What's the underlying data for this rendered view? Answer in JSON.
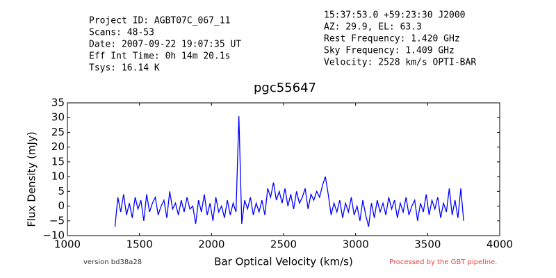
{
  "chart_data": {
    "type": "line",
    "title": "pgc55647",
    "xlabel": "Bar Optical Velocity (km/s)",
    "ylabel": "Flux Density (mJy)",
    "header_left": [
      "Project ID: AGBT07C_067_11",
      "Scans: 48-53",
      "Date: 2007-09-22 19:07:35 UT",
      "Eff Int Time: 0h 14m 20.1s",
      "Tsys: 16.14 K"
    ],
    "header_right": [
      "15:37:53.0 +59:23:30 J2000",
      "AZ: 29.9, EL: 63.3",
      "Rest Frequency:   1.420 GHz",
      "Sky Frequency:    1.409 GHz",
      "Velocity: 2528 km/s OPTI-BAR"
    ],
    "footer_left": "version bd38a28",
    "footer_right": "Processed by the GBT pipeline.",
    "color": "#0000ff",
    "xlim": [
      1000,
      4000
    ],
    "ylim": [
      -10,
      35
    ],
    "xticks": [
      1000,
      1500,
      2000,
      2500,
      3000,
      3500,
      4000
    ],
    "yticks": [
      {
        "value": -10,
        "label": "−10"
      },
      {
        "value": -5,
        "label": "−5"
      },
      0,
      5,
      10,
      15,
      20,
      25,
      30,
      35
    ],
    "x": [
      1330,
      1350,
      1370,
      1390,
      1410,
      1430,
      1450,
      1470,
      1490,
      1510,
      1530,
      1550,
      1570,
      1590,
      1610,
      1630,
      1650,
      1670,
      1690,
      1710,
      1730,
      1750,
      1770,
      1790,
      1810,
      1830,
      1850,
      1870,
      1890,
      1910,
      1930,
      1950,
      1970,
      1990,
      2010,
      2030,
      2050,
      2070,
      2090,
      2110,
      2130,
      2150,
      2170,
      2190,
      2210,
      2230,
      2250,
      2270,
      2290,
      2310,
      2330,
      2350,
      2370,
      2390,
      2410,
      2430,
      2450,
      2470,
      2490,
      2510,
      2530,
      2550,
      2570,
      2590,
      2610,
      2630,
      2650,
      2670,
      2690,
      2710,
      2730,
      2750,
      2770,
      2790,
      2810,
      2830,
      2850,
      2870,
      2890,
      2910,
      2930,
      2950,
      2970,
      2990,
      3010,
      3030,
      3050,
      3070,
      3090,
      3110,
      3130,
      3150,
      3170,
      3190,
      3210,
      3230,
      3250,
      3270,
      3290,
      3310,
      3330,
      3350,
      3370,
      3390,
      3410,
      3430,
      3450,
      3470,
      3490,
      3510,
      3530,
      3550,
      3570,
      3590,
      3610,
      3630,
      3650,
      3670,
      3690,
      3710,
      3730,
      3750
    ],
    "values": [
      -7,
      3,
      -2,
      4,
      -3,
      1,
      -4,
      3,
      -1,
      2,
      -5,
      4,
      -2,
      1,
      3,
      -3,
      0,
      2,
      -4,
      5,
      -1,
      1,
      -3,
      2,
      -2,
      3,
      -1,
      0,
      -6,
      2,
      -2,
      4,
      -3,
      1,
      -5,
      3,
      -2,
      0,
      -4,
      2,
      -3,
      1,
      -2,
      30.5,
      -6,
      2,
      -1,
      3,
      -3,
      1,
      -2,
      2,
      -3,
      6,
      3,
      8,
      2,
      5,
      1,
      6,
      0,
      4,
      -1,
      5,
      1,
      3,
      6,
      -1,
      4,
      2,
      5,
      3,
      7,
      10,
      4,
      -3,
      1,
      -2,
      2,
      -4,
      1,
      -2,
      3,
      -3,
      0,
      -5,
      2,
      -3,
      -7,
      1,
      -4,
      2,
      -2,
      1,
      -3,
      3,
      -1,
      2,
      -4,
      1,
      -2,
      3,
      -3,
      0,
      2,
      -5,
      1,
      -2,
      4,
      -3,
      2,
      -1,
      3,
      -4,
      1,
      -2,
      6,
      -3,
      2,
      -4,
      6,
      -5
    ]
  }
}
